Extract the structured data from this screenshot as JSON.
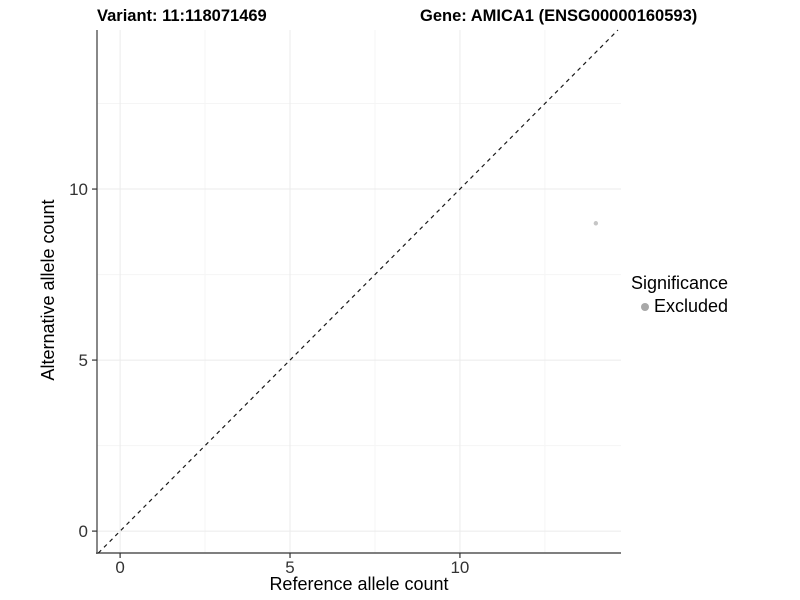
{
  "chart_data": {
    "type": "scatter",
    "title_left": "Variant: 11:118071469",
    "title_right": "Gene: AMICA1 (ENSG00000160593)",
    "xlabel": "Reference allele count",
    "ylabel": "Alternative allele count",
    "xlim": [
      -0.68,
      14.74
    ],
    "ylim": [
      -0.64,
      14.65
    ],
    "xticks": [
      0,
      5,
      10
    ],
    "yticks": [
      0,
      5,
      10
    ],
    "minor_grid_step": 2.5,
    "grid": true,
    "identity_line": {
      "equation": "y = x",
      "style": "dashed",
      "color": "#1a1a1a"
    },
    "series": [
      {
        "name": "Excluded",
        "color": "#c6c6c6",
        "points": [
          {
            "x": 14,
            "y": 9
          }
        ]
      }
    ],
    "legend": {
      "title": "Significance",
      "position": "right",
      "items": [
        {
          "label": "Excluded",
          "color": "#a8a8a8"
        }
      ]
    },
    "colors": {
      "grid_major": "#ebebeb",
      "grid_minor": "#f5f5f5",
      "axis_line": "#555555",
      "tick_mark": "#333333",
      "tick_label": "#333333"
    }
  }
}
